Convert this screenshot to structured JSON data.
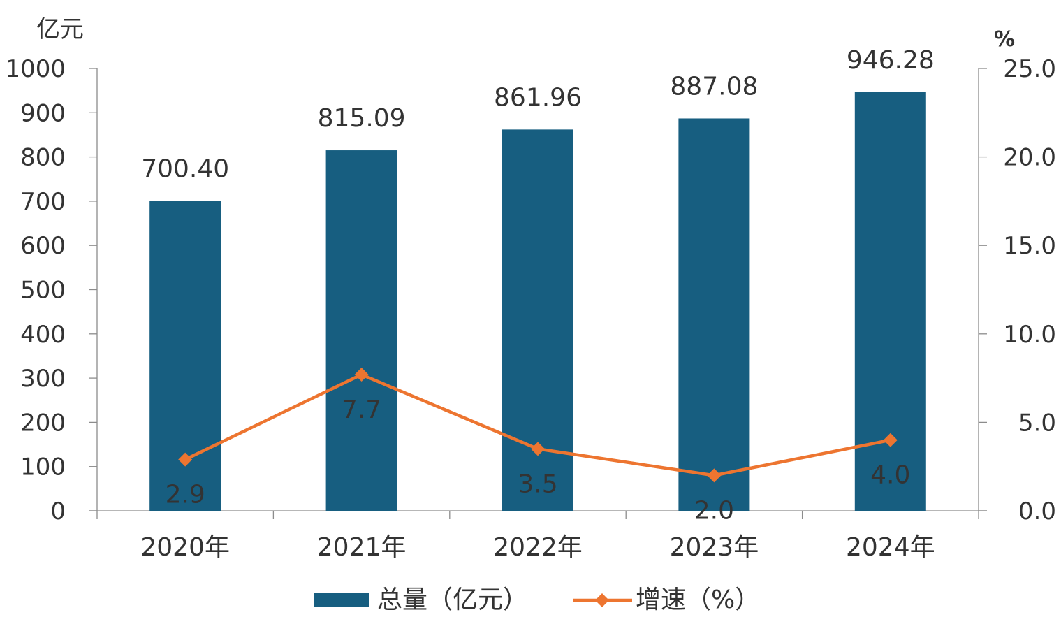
{
  "chart_data": {
    "type": "bar",
    "categories": [
      "2020年",
      "2021年",
      "2022年",
      "2023年",
      "2024年"
    ],
    "series": [
      {
        "name": "总量（亿元）",
        "type": "bar",
        "axis": "left",
        "color": "#175e80",
        "values": [
          700.4,
          815.09,
          861.96,
          887.08,
          946.28
        ],
        "labels": [
          "700.40",
          "815.09",
          "861.96",
          "887.08",
          "946.28"
        ]
      },
      {
        "name": "增速（%）",
        "type": "line",
        "axis": "right",
        "color": "#ed7530",
        "marker": "diamond",
        "values": [
          2.9,
          7.7,
          3.5,
          2.0,
          4.0
        ],
        "labels": [
          "2.9",
          "7.7",
          "3.5",
          "2.0",
          "4.0"
        ]
      }
    ],
    "y_left": {
      "label": "亿元",
      "range": [
        0,
        1000
      ],
      "ticks": [
        "0",
        "100",
        "200",
        "300",
        "400",
        "500",
        "600",
        "700",
        "800",
        "900",
        "1000"
      ]
    },
    "y_right": {
      "label": "%",
      "range": [
        0,
        25
      ],
      "ticks": [
        "0.0",
        "5.0",
        "10.0",
        "15.0",
        "20.0",
        "25.0"
      ]
    },
    "grid": false,
    "legend_position": "bottom-center"
  }
}
